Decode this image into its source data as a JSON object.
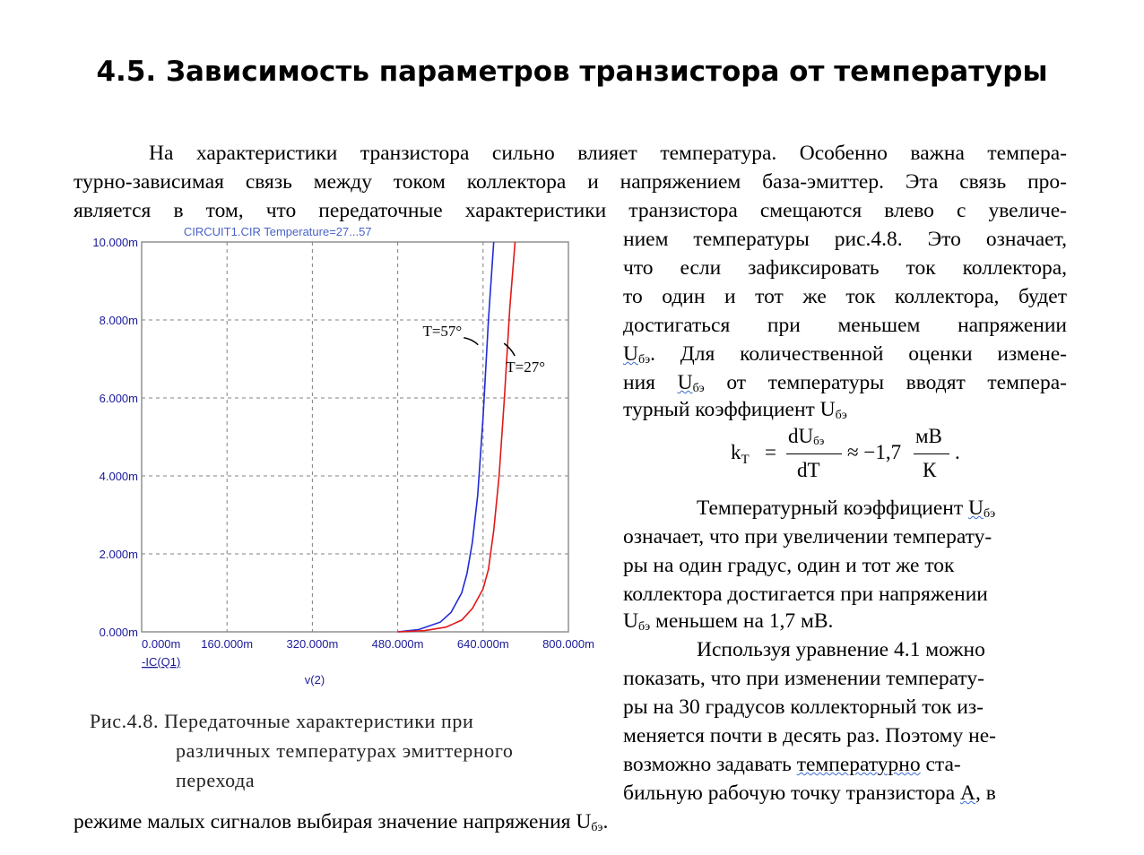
{
  "title": "4.5. Зависимость параметров транзистора от температуры",
  "paragraph1": {
    "line1": "На характеристики транзистора сильно влияет температура. Особенно важна темпера-",
    "line2": "турно-зависимая связь между током коллектора и напряжением база-эмиттер. Эта связь про-",
    "line3": "является в том, что передаточные характеристики транзистора смещаются влево с увеличе-",
    "line4": "нием температуры рис.4.8. Это означает,",
    "line5": "что если зафиксировать ток коллектора,",
    "line6": "то один и тот же ток коллектора, будет",
    "line7": "достигаться при меньшем напряжении",
    "line8_sym": "U",
    "line8_sub": "бэ",
    "line8_rest": ". Для количественной оценки измене-",
    "line9_a": "ния ",
    "line9_sym": "U",
    "line9_sub": "бэ",
    "line9_rest": " от температуры вводят темпера-",
    "line10_a": "турный коэффициент U",
    "line10_sub": "бэ"
  },
  "formula": {
    "lhs": "k",
    "lhs_sub": "T",
    "eq": "=",
    "num": "dU",
    "num_sub": "бэ",
    "den": "dT",
    "approx": "≈ −1,7",
    "unit_num": "мВ",
    "unit_den": "К",
    "period": "."
  },
  "paragraph2": {
    "line1_a": "Температурный коэффициент ",
    "line1_sym": "U",
    "line1_sub": "бэ",
    "line2": "означает, что при увеличении температу-",
    "line3": "ры на один градус, один и тот же ток",
    "line4": "коллектора достигается при напряжении",
    "line5_sym": "U",
    "line5_sub": "бэ",
    "line5_rest": " меньшем на 1,7 мВ."
  },
  "paragraph3": {
    "line1": "Используя уравнение 4.1 можно",
    "line2": "показать, что при изменении температу-",
    "line3": "ры на 30 градусов коллекторный ток из-",
    "line4": "меняется почти в десять раз. Поэтому не-",
    "line5_a": "возможно задавать ",
    "line5_wavy": "температурно",
    "line5_rest": " ста-",
    "line6_a": "бильную рабочую точку транзистора ",
    "line6_wavy": "А",
    "line6_rest": ", в",
    "line7_a": "режиме малых сигналов выбирая значение напряжения U",
    "line7_sub": "бэ",
    "line7_rest": "."
  },
  "caption": {
    "line1": "Рис.4.8. Передаточные характеристики при",
    "line2": "различных температурах эмиттерного",
    "line3": "перехода"
  },
  "chart_data": {
    "type": "line",
    "title": "CIRCUIT1.CIR Temperature=27...57",
    "xlabel": "v(2)",
    "ylabel": "-IC(Q1)",
    "xlim": [
      0,
      800
    ],
    "ylim": [
      0,
      10
    ],
    "x_tick_labels": [
      "0.000m",
      "160.000m",
      "320.000m",
      "480.000m",
      "640.000m",
      "800.000m"
    ],
    "y_tick_labels": [
      "0.000m",
      "2.000m",
      "4.000m",
      "6.000m",
      "8.000m",
      "10.000m"
    ],
    "x_ticks": [
      0,
      160,
      320,
      480,
      640,
      800
    ],
    "y_ticks": [
      0,
      2,
      4,
      6,
      8,
      10
    ],
    "grid": true,
    "colors": {
      "axis_text": "#1a1a99",
      "title": "#4a63c8",
      "grid": "#808080",
      "frame": "#909090"
    },
    "series": [
      {
        "name": "T=57°",
        "color": "#1f2bd6",
        "x": [
          480,
          520,
          560,
          580,
          600,
          610,
          620,
          630,
          640,
          650,
          660
        ],
        "y": [
          0.0,
          0.06,
          0.25,
          0.5,
          1.0,
          1.5,
          2.3,
          3.5,
          5.5,
          8.0,
          10.0
        ]
      },
      {
        "name": "T=27°",
        "color": "#e01818",
        "x": [
          480,
          530,
          570,
          600,
          620,
          640,
          650,
          660,
          670,
          680,
          690,
          700
        ],
        "y": [
          0.0,
          0.03,
          0.12,
          0.3,
          0.6,
          1.1,
          1.6,
          2.6,
          4.0,
          6.0,
          8.3,
          10.0
        ]
      }
    ],
    "annotations": [
      {
        "text": "T=57°",
        "series": 0
      },
      {
        "text": "T=27°",
        "series": 1
      }
    ]
  }
}
